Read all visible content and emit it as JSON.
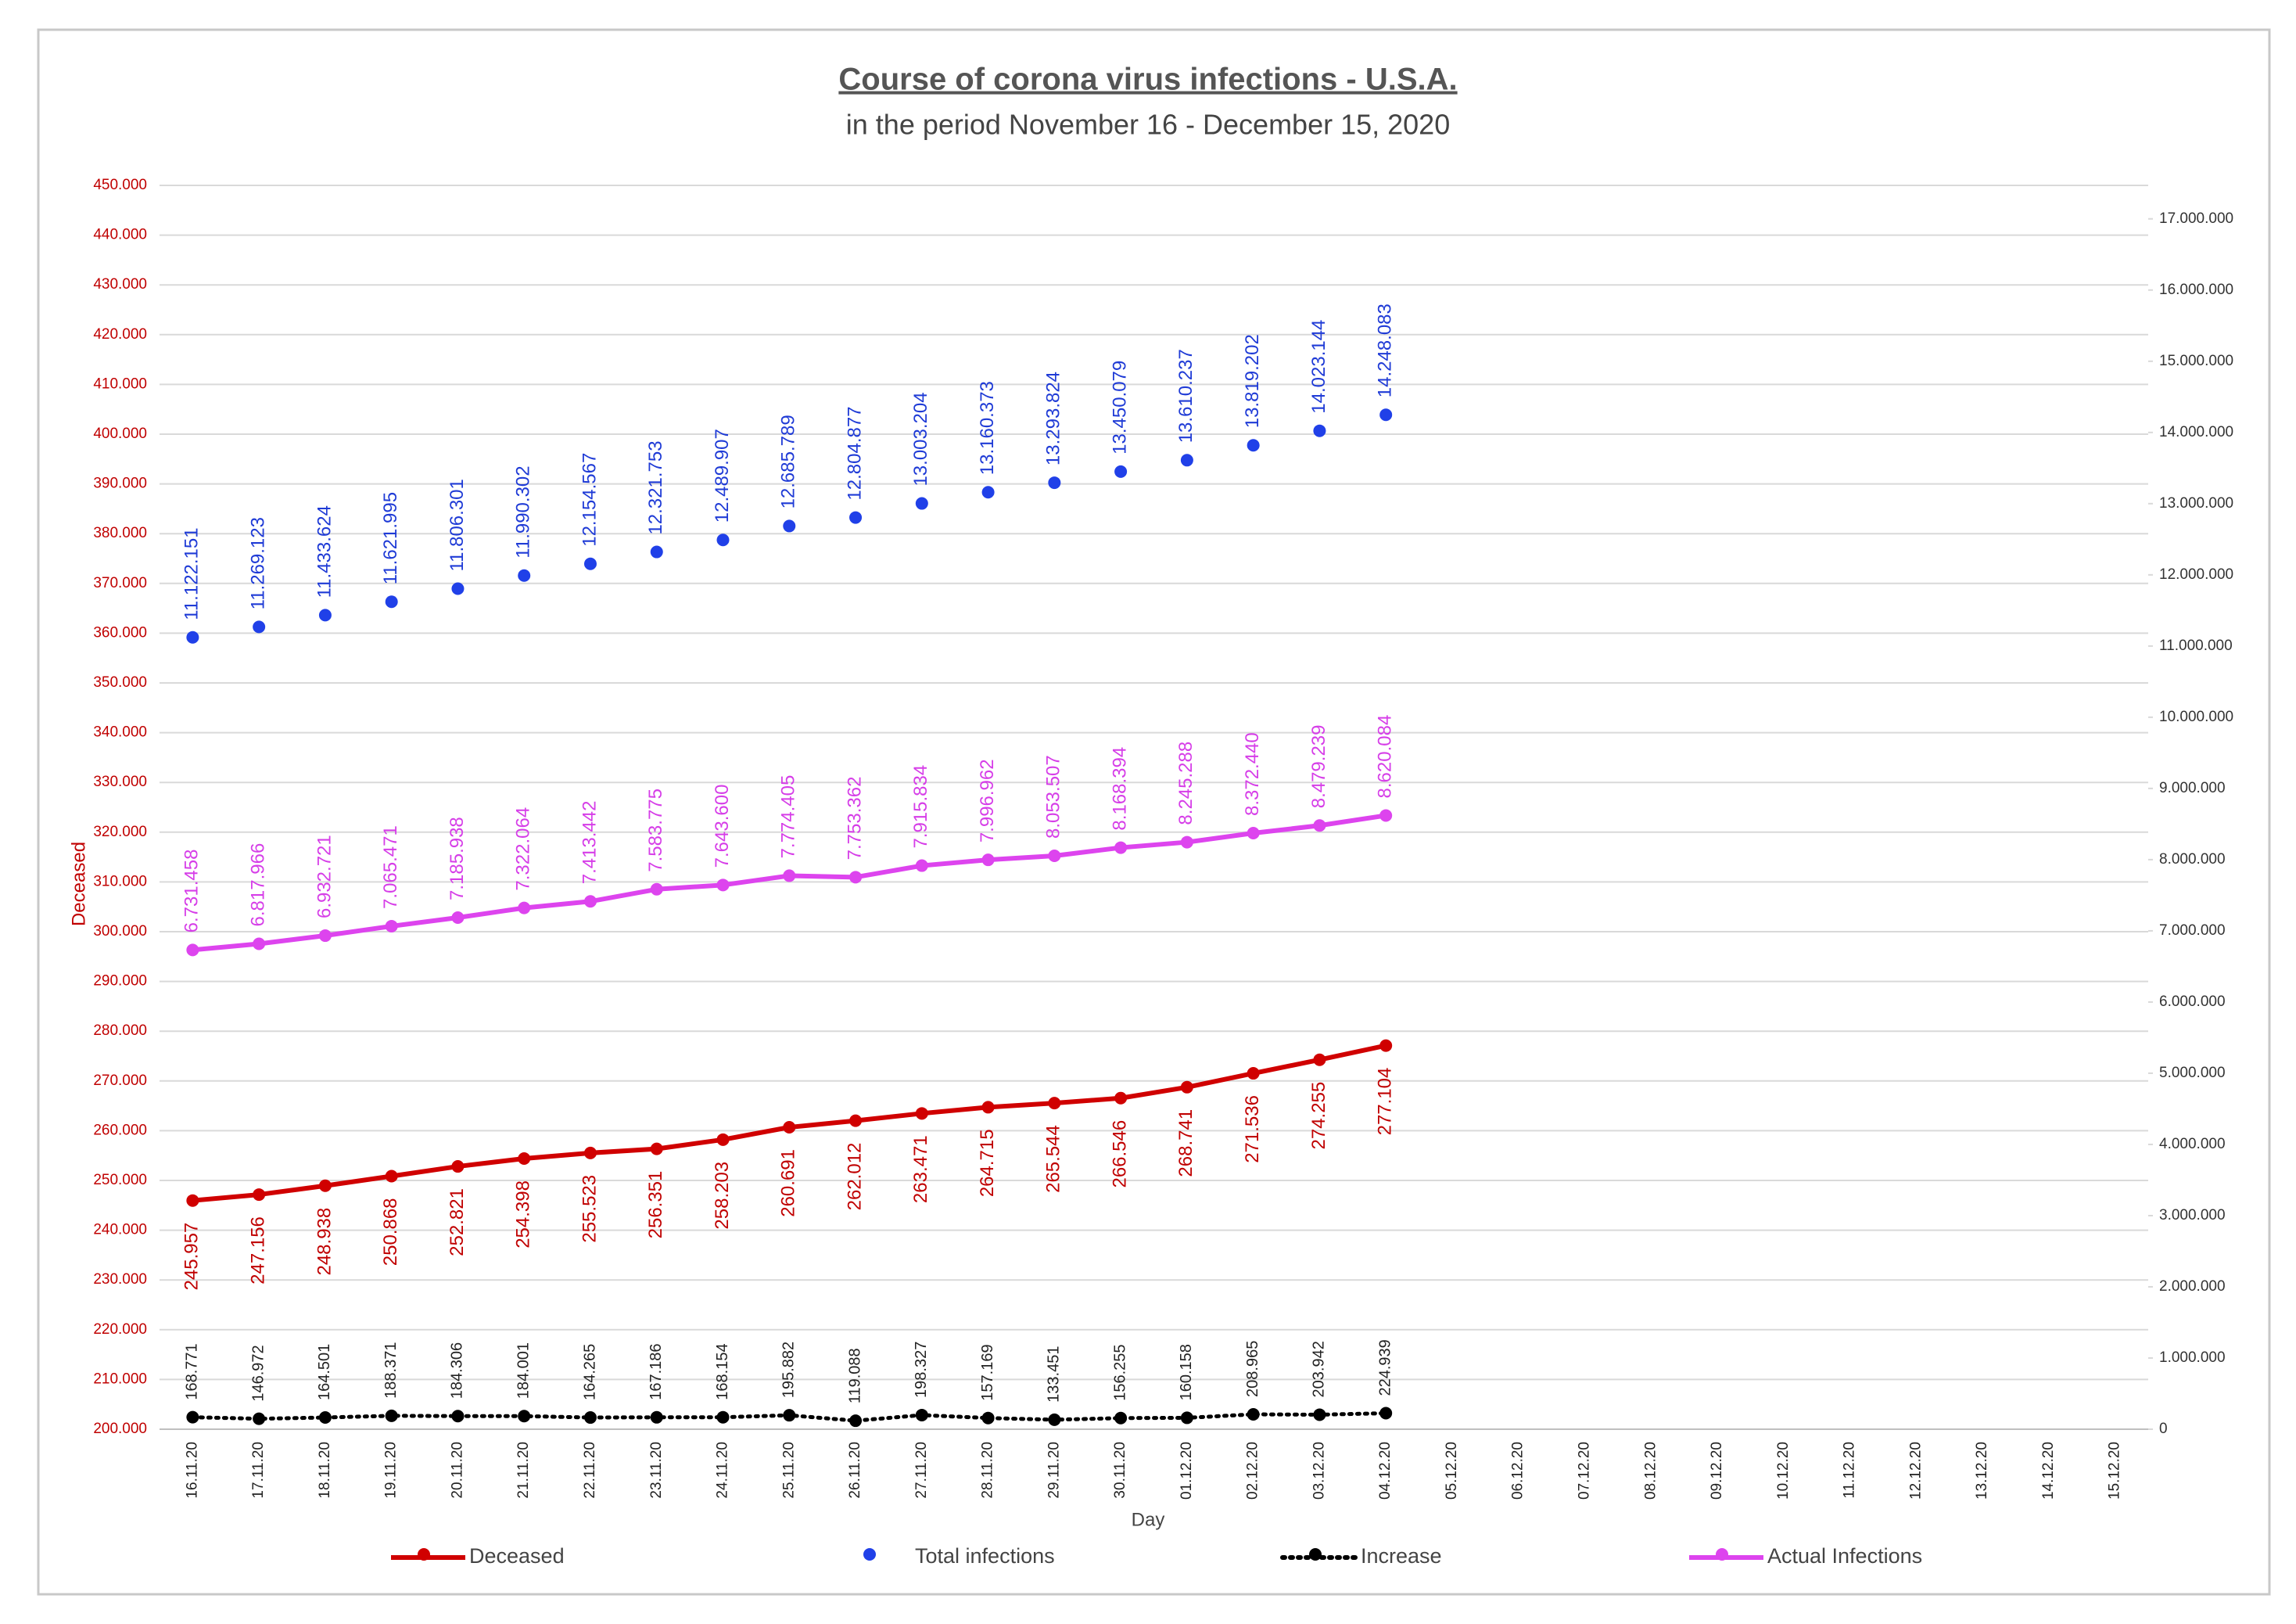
{
  "chart_data": {
    "type": "line",
    "title": "Course of corona virus infections - U.S.A.",
    "subtitle": "in the period November 16 - December 15, 2020",
    "x_label": "Day",
    "y_label": "Deceased",
    "categories": [
      "16.11.20",
      "17.11.20",
      "18.11.20",
      "19.11.20",
      "20.11.20",
      "21.11.20",
      "22.11.20",
      "23.11.20",
      "24.11.20",
      "25.11.20",
      "26.11.20",
      "27.11.20",
      "28.11.20",
      "29.11.20",
      "30.11.20",
      "01.12.20",
      "02.12.20",
      "03.12.20",
      "04.12.20",
      "05.12.20",
      "06.12.20",
      "07.12.20",
      "08.12.20",
      "09.12.20",
      "10.12.20",
      "11.12.20",
      "12.12.20",
      "13.12.20",
      "14.12.20",
      "15.12.20"
    ],
    "ylim": [
      200000,
      450000
    ],
    "yticks": [
      {
        "value": 200000,
        "label": "200.000"
      },
      {
        "value": 210000,
        "label": "210.000"
      },
      {
        "value": 220000,
        "label": "220.000"
      },
      {
        "value": 230000,
        "label": "230.000"
      },
      {
        "value": 240000,
        "label": "240.000"
      },
      {
        "value": 250000,
        "label": "250.000"
      },
      {
        "value": 260000,
        "label": "260.000"
      },
      {
        "value": 270000,
        "label": "270.000"
      },
      {
        "value": 280000,
        "label": "280.000"
      },
      {
        "value": 290000,
        "label": "290.000"
      },
      {
        "value": 300000,
        "label": "300.000"
      },
      {
        "value": 310000,
        "label": "310.000"
      },
      {
        "value": 320000,
        "label": "320.000"
      },
      {
        "value": 330000,
        "label": "330.000"
      },
      {
        "value": 340000,
        "label": "340.000"
      },
      {
        "value": 350000,
        "label": "350.000"
      },
      {
        "value": 360000,
        "label": "360.000"
      },
      {
        "value": 370000,
        "label": "370.000"
      },
      {
        "value": 380000,
        "label": "380.000"
      },
      {
        "value": 390000,
        "label": "390.000"
      },
      {
        "value": 400000,
        "label": "400.000"
      },
      {
        "value": 410000,
        "label": "410.000"
      },
      {
        "value": 420000,
        "label": "420.000"
      },
      {
        "value": 430000,
        "label": "430.000"
      },
      {
        "value": 440000,
        "label": "440.000"
      },
      {
        "value": 450000,
        "label": "450.000"
      }
    ],
    "y2lim": [
      0,
      17470000
    ],
    "y2ticks": [
      0,
      {
        "value": 1000000,
        "label": "1.000.000"
      },
      {
        "value": 2000000,
        "label": "2.000.000"
      },
      {
        "value": 3000000,
        "label": "3.000.000"
      },
      {
        "value": 4000000,
        "label": "4.000.000"
      },
      {
        "value": 5000000,
        "label": "5.000.000"
      },
      {
        "value": 6000000,
        "label": "6.000.000"
      },
      {
        "value": 7000000,
        "label": "7.000.000"
      },
      {
        "value": 8000000,
        "label": "8.000.000"
      },
      {
        "value": 9000000,
        "label": "9.000.000"
      },
      {
        "value": 10000000,
        "label": "10.000.000"
      },
      {
        "value": 11000000,
        "label": "11.000.000"
      },
      {
        "value": 12000000,
        "label": "12.000.000"
      },
      {
        "value": 13000000,
        "label": "13.000.000"
      },
      {
        "value": 14000000,
        "label": "14.000.000"
      },
      {
        "value": 15000000,
        "label": "15.000.000"
      },
      {
        "value": 16000000,
        "label": "16.000.000"
      },
      {
        "value": 17000000,
        "label": "17.000.000"
      }
    ],
    "grid": true,
    "y_tick_color": "#c00000",
    "series": [
      {
        "name": "Deceased",
        "color": "#d00000",
        "label_color": "#c00000",
        "axis": "y",
        "line": "solid",
        "label_position": "below",
        "values": [
          245957,
          247156,
          248938,
          250868,
          252821,
          254398,
          255523,
          256351,
          258203,
          260691,
          262012,
          263471,
          264715,
          265544,
          266546,
          268741,
          271536,
          274255,
          277104,
          null,
          null,
          null,
          null,
          null,
          null,
          null,
          null,
          null,
          null,
          null
        ],
        "value_labels": [
          "245.957",
          "247.156",
          "248.938",
          "250.868",
          "252.821",
          "254.398",
          "255.523",
          "256.351",
          "258.203",
          "260.691",
          "262.012",
          "263.471",
          "264.715",
          "265.544",
          "266.546",
          "268.741",
          "271.536",
          "274.255",
          "277.104",
          null,
          null,
          null,
          null,
          null,
          null,
          null,
          null,
          null,
          null,
          null
        ]
      },
      {
        "name": "Total infections",
        "color": "#2040e8",
        "label_color": "#1f3bd6",
        "axis": "y2",
        "line": "none",
        "label_position": "above",
        "values": [
          11122151,
          11269123,
          11433624,
          11621995,
          11806301,
          11990302,
          12154567,
          12321753,
          12489907,
          12685789,
          12804877,
          13003204,
          13160373,
          13293824,
          13450079,
          13610237,
          13819202,
          14023144,
          14248083,
          null,
          null,
          null,
          null,
          null,
          null,
          null,
          null,
          null,
          null,
          null
        ],
        "value_labels": [
          "11.122.151",
          "11.269.123",
          "11.433.624",
          "11.621.995",
          "11.806.301",
          "11.990.302",
          "12.154.567",
          "12.321.753",
          "12.489.907",
          "12.685.789",
          "12.804.877",
          "13.003.204",
          "13.160.373",
          "13.293.824",
          "13.450.079",
          "13.610.237",
          "13.819.202",
          "14.023.144",
          "14.248.083",
          null,
          null,
          null,
          null,
          null,
          null,
          null,
          null,
          null,
          null,
          null
        ]
      },
      {
        "name": "Increase",
        "color": "#000000",
        "label_color": "#222222",
        "axis": "y2",
        "line": "dotted",
        "label_position": "above",
        "values": [
          168771,
          146972,
          164501,
          188371,
          184306,
          184001,
          164265,
          167186,
          168154,
          195882,
          119088,
          198327,
          157169,
          133451,
          156255,
          160158,
          208965,
          203942,
          224939,
          null,
          null,
          null,
          null,
          null,
          null,
          null,
          null,
          null,
          null,
          null
        ],
        "value_labels": [
          "168.771",
          "146.972",
          "164.501",
          "188.371",
          "184.306",
          "184.001",
          "164.265",
          "167.186",
          "168.154",
          "195.882",
          "119.088",
          "198.327",
          "157.169",
          "133.451",
          "156.255",
          "160.158",
          "208.965",
          "203.942",
          "224.939",
          null,
          null,
          null,
          null,
          null,
          null,
          null,
          null,
          null,
          null,
          null
        ]
      },
      {
        "name": "Actual Infections",
        "color": "#dd44ee",
        "label_color": "#d63ee8",
        "axis": "y2",
        "line": "solid",
        "label_position": "above",
        "values": [
          6731458,
          6817966,
          6932721,
          7065471,
          7185938,
          7322064,
          7413442,
          7583775,
          7643600,
          7774405,
          7753362,
          7915834,
          7996962,
          8053507,
          8168394,
          8245288,
          8372440,
          8479239,
          8620084,
          null,
          null,
          null,
          null,
          null,
          null,
          null,
          null,
          null,
          null,
          null
        ],
        "value_labels": [
          "6.731.458",
          "6.817.966",
          "6.932.721",
          "7.065.471",
          "7.185.938",
          "7.322.064",
          "7.413.442",
          "7.583.775",
          "7.643.600",
          "7.774.405",
          "7.753.362",
          "7.915.834",
          "7.996.962",
          "8.053.507",
          "8.168.394",
          "8.245.288",
          "8.372.440",
          "8.479.239",
          "8.620.084",
          null,
          null,
          null,
          null,
          null,
          null,
          null,
          null,
          null,
          null,
          null
        ]
      }
    ]
  }
}
